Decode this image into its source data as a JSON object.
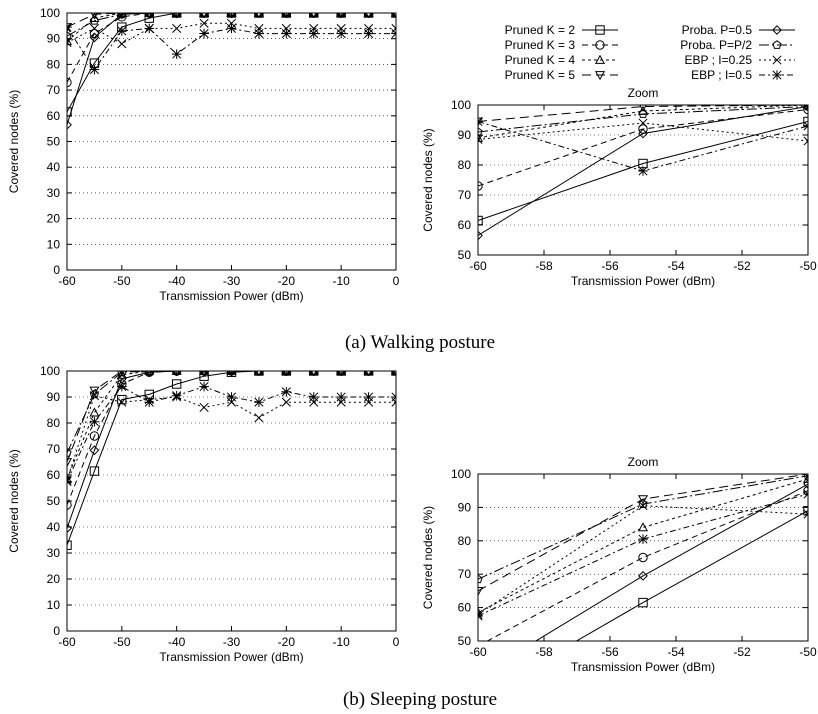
{
  "captions": {
    "walking": "(a) Walking posture",
    "sleeping": "(b) Sleeping posture"
  },
  "legend": [
    {
      "label": "Pruned K = 2"
    },
    {
      "label": "Pruned K = 3"
    },
    {
      "label": "Pruned K = 4"
    },
    {
      "label": "Pruned K = 5"
    },
    {
      "label": "Proba. P=0.5"
    },
    {
      "label": "Proba. P=P/2"
    },
    {
      "label": "EBP ; I=0.25"
    },
    {
      "label": "EBP ; I=0.5"
    }
  ],
  "chart_data": [
    {
      "id": "walking-full",
      "type": "line",
      "title": "",
      "xlabel": "Transmission Power (dBm)",
      "ylabel": "Covered nodes (%)",
      "xlim": [
        -60,
        0
      ],
      "ylim": [
        0,
        100
      ],
      "xticks": [
        -60,
        -50,
        -40,
        -30,
        -20,
        -10,
        0
      ],
      "yticks": [
        0,
        10,
        20,
        30,
        40,
        50,
        60,
        70,
        80,
        90,
        100
      ],
      "x": [
        -60,
        -55,
        -50,
        -45,
        -40,
        -35,
        -30,
        -25,
        -20,
        -15,
        -10,
        -5,
        0
      ],
      "series": [
        {
          "name": "Pruned K = 2",
          "values": [
            61.5,
            80.5,
            94.5,
            98,
            100,
            100,
            100,
            100,
            100,
            100,
            100,
            100,
            100
          ]
        },
        {
          "name": "Pruned K = 3",
          "values": [
            73,
            92,
            98.5,
            100,
            100,
            100,
            100,
            100,
            100,
            100,
            100,
            100,
            100
          ]
        },
        {
          "name": "Pruned K = 4",
          "values": [
            89,
            98,
            100,
            100,
            100,
            100,
            100,
            100,
            100,
            100,
            100,
            100,
            100
          ]
        },
        {
          "name": "Pruned K = 5",
          "values": [
            94.5,
            99.5,
            100,
            100,
            100,
            100,
            100,
            100,
            100,
            100,
            100,
            100,
            100
          ]
        },
        {
          "name": "Proba. P=0.5",
          "values": [
            56.5,
            90.5,
            99.5,
            100,
            100,
            100,
            100,
            100,
            100,
            100,
            100,
            100,
            100
          ]
        },
        {
          "name": "Proba. P=P/2",
          "values": [
            91,
            97,
            99.5,
            100,
            100,
            100,
            100,
            100,
            100,
            100,
            100,
            100,
            100
          ]
        },
        {
          "name": "EBP ; I=0.25",
          "values": [
            88.5,
            94,
            88,
            94,
            94,
            96,
            96,
            94,
            94,
            94,
            94,
            94,
            94
          ]
        },
        {
          "name": "EBP ; I=0.5",
          "values": [
            94.5,
            78,
            93,
            94,
            84,
            92,
            94,
            92,
            92,
            92,
            92,
            92,
            92
          ]
        }
      ]
    },
    {
      "id": "walking-zoom",
      "type": "line",
      "title": "Zoom",
      "xlabel": "Transmission Power (dBm)",
      "ylabel": "Covered nodes (%)",
      "xlim": [
        -60,
        -50
      ],
      "ylim": [
        50,
        100
      ],
      "xticks": [
        -60,
        -58,
        -56,
        -54,
        -52,
        -50
      ],
      "yticks": [
        50,
        60,
        70,
        80,
        90,
        100
      ],
      "x": [
        -60,
        -55,
        -50
      ],
      "series": [
        {
          "name": "Pruned K = 2",
          "values": [
            61.5,
            80.5,
            94.5
          ]
        },
        {
          "name": "Pruned K = 3",
          "values": [
            73,
            92,
            98.5
          ]
        },
        {
          "name": "Pruned K = 4",
          "values": [
            89,
            98,
            100
          ]
        },
        {
          "name": "Pruned K = 5",
          "values": [
            94.5,
            99.5,
            100
          ]
        },
        {
          "name": "Proba. P=0.5",
          "values": [
            56.5,
            90.5,
            99.5
          ]
        },
        {
          "name": "Proba. P=P/2",
          "values": [
            91,
            97,
            99.5
          ]
        },
        {
          "name": "EBP ; I=0.25",
          "values": [
            88.5,
            94,
            88
          ]
        },
        {
          "name": "EBP ; I=0.5",
          "values": [
            94.5,
            78,
            93
          ]
        }
      ]
    },
    {
      "id": "sleeping-full",
      "type": "line",
      "title": "",
      "xlabel": "Transmission Power (dBm)",
      "ylabel": "Covered nodes (%)",
      "xlim": [
        -60,
        0
      ],
      "ylim": [
        0,
        100
      ],
      "xticks": [
        -60,
        -50,
        -40,
        -30,
        -20,
        -10,
        0
      ],
      "yticks": [
        0,
        10,
        20,
        30,
        40,
        50,
        60,
        70,
        80,
        90,
        100
      ],
      "x": [
        -60,
        -55,
        -50,
        -45,
        -40,
        -35,
        -30,
        -25,
        -20,
        -15,
        -10,
        -5,
        0
      ],
      "series": [
        {
          "name": "Pruned K = 2",
          "values": [
            33,
            61.5,
            89,
            91,
            95,
            98,
            99.5,
            100,
            100,
            100,
            100,
            100,
            100
          ]
        },
        {
          "name": "Pruned K = 3",
          "values": [
            48.5,
            75,
            95,
            99.5,
            100,
            100,
            100,
            100,
            100,
            100,
            100,
            100,
            100
          ]
        },
        {
          "name": "Pruned K = 4",
          "values": [
            58.5,
            84,
            98.5,
            100,
            100,
            100,
            100,
            100,
            100,
            100,
            100,
            100,
            100
          ]
        },
        {
          "name": "Pruned K = 5",
          "values": [
            65,
            92.5,
            100,
            100,
            100,
            100,
            100,
            100,
            100,
            100,
            100,
            100,
            100
          ]
        },
        {
          "name": "Proba. P=0.5",
          "values": [
            39.5,
            69.5,
            97,
            99.5,
            100,
            100,
            100,
            100,
            100,
            100,
            100,
            100,
            100
          ]
        },
        {
          "name": "Proba. P=P/2",
          "values": [
            68.5,
            91,
            99.5,
            100,
            100,
            100,
            100,
            100,
            100,
            100,
            100,
            100,
            100
          ]
        },
        {
          "name": "EBP ; I=0.25",
          "values": [
            58,
            90.5,
            88,
            89,
            90,
            86,
            88,
            82,
            88,
            88,
            88,
            88,
            88
          ]
        },
        {
          "name": "EBP ; I=0.5",
          "values": [
            57.5,
            80.5,
            94,
            88,
            90.5,
            94,
            90,
            88,
            92,
            90,
            90,
            90,
            90
          ]
        }
      ]
    },
    {
      "id": "sleeping-zoom",
      "type": "line",
      "title": "Zoom",
      "xlabel": "Transmission Power (dBm)",
      "ylabel": "Covered nodes (%)",
      "xlim": [
        -60,
        -50
      ],
      "ylim": [
        50,
        100
      ],
      "xticks": [
        -60,
        -58,
        -56,
        -54,
        -52,
        -50
      ],
      "yticks": [
        50,
        60,
        70,
        80,
        90,
        100
      ],
      "x": [
        -60,
        -55,
        -50
      ],
      "series": [
        {
          "name": "Pruned K = 2",
          "values": [
            33,
            61.5,
            89
          ]
        },
        {
          "name": "Pruned K = 3",
          "values": [
            48.5,
            75,
            95
          ]
        },
        {
          "name": "Pruned K = 4",
          "values": [
            58.5,
            84,
            98.5
          ]
        },
        {
          "name": "Pruned K = 5",
          "values": [
            65,
            92.5,
            100
          ]
        },
        {
          "name": "Proba. P=0.5",
          "values": [
            39.5,
            69.5,
            97
          ]
        },
        {
          "name": "Proba. P=P/2",
          "values": [
            68.5,
            91,
            99.5
          ]
        },
        {
          "name": "EBP ; I=0.25",
          "values": [
            58,
            90.5,
            88
          ]
        },
        {
          "name": "EBP ; I=0.5",
          "values": [
            57.5,
            80.5,
            94
          ]
        }
      ]
    }
  ]
}
